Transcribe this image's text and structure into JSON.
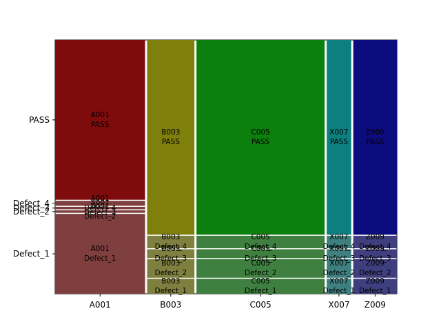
{
  "chart_data": {
    "type": "mosaic",
    "categories": [
      "A001",
      "B003",
      "C005",
      "X007",
      "Z009"
    ],
    "outcomes": [
      "Defect_1",
      "Defect_2",
      "Defect_3",
      "Defect_4",
      "PASS"
    ],
    "column_share": [
      0.268,
      0.141,
      0.382,
      0.073,
      0.13
    ],
    "segments": {
      "A001": [
        0.32,
        0.01,
        0.01,
        0.02,
        0.64
      ],
      "B003": [
        0.06,
        0.075,
        0.035,
        0.05,
        0.78
      ],
      "C005": [
        0.06,
        0.075,
        0.035,
        0.05,
        0.78
      ],
      "X007": [
        0.06,
        0.075,
        0.035,
        0.05,
        0.78
      ],
      "Z009": [
        0.06,
        0.075,
        0.035,
        0.05,
        0.78
      ]
    },
    "ytick_labels": [
      "PASS",
      "Defect_4",
      "Defect_3",
      "Defect_2",
      "Defect_1"
    ],
    "colors": {
      "A001": "#7f0c0c",
      "B003": "#7f7f0c",
      "C005": "#0c7f0c",
      "X007": "#0c7f7f",
      "Z009": "#0c0c7f"
    },
    "defect_colors": {
      "A001": "#7f3f3f",
      "B003": "#7f7f3f",
      "C005": "#3f7f3f",
      "X007": "#3f7f7f",
      "Z009": "#3f3f7f"
    }
  }
}
